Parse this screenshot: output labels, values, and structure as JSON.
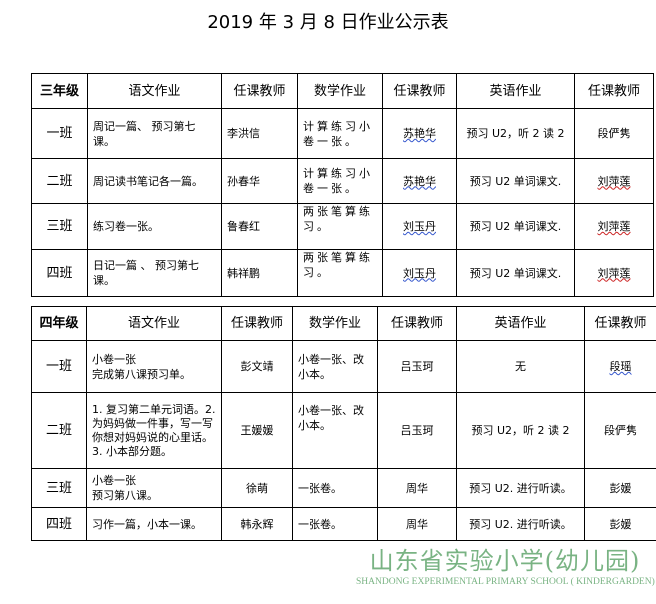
{
  "title": "2019 年  3 月 8 日作业公示表",
  "grade3": {
    "headers": [
      "三年级",
      "语文作业",
      "任课教师",
      "数学作业",
      "任课教师",
      "英语作业",
      "任课教师"
    ],
    "rows": [
      [
        "一班",
        "周记一篇、 预习第七课。",
        "李洪信",
        "计算练习小卷一张。",
        "苏艳华",
        "预习 U2，听 2 读 2",
        "段俨隽"
      ],
      [
        "二班",
        "周记读书笔记各一篇。",
        "孙春华",
        "计算练习小卷一张。",
        "苏艳华",
        "预习  U2 单词课文.",
        "刘萍莲"
      ],
      [
        "三班",
        "练习卷一张。",
        "鲁春红",
        "两张笔算练习。",
        "刘玉丹",
        "预习  U2 单词课文.",
        "刘萍莲"
      ],
      [
        "四班",
        "日记一篇 、 预习第七课。",
        "韩祥鹏",
        "两张笔算练习。",
        "刘玉丹",
        "预习  U2 单词课文.",
        "刘萍莲"
      ]
    ]
  },
  "grade4": {
    "headers": [
      "四年级",
      "语文作业",
      "任课教师",
      "数学作业",
      "任课教师",
      "英语作业",
      "任课教师"
    ],
    "rows": [
      [
        "一班",
        "小卷一张\n完成第八课预习单。",
        "彭文靖",
        "小卷一张、改小本。",
        "吕玉珂",
        "无",
        "段瑶"
      ],
      [
        "二班",
        "1. 复习第二单元词语。2. 为妈妈做一件事，写一写你想对妈妈说的心里话。3. 小本部分题。",
        "王媛媛",
        "小卷一张、改小本。",
        "吕玉珂",
        "预习 U2，听 2 读 2",
        "段俨隽"
      ],
      [
        "三班",
        "小卷一张\n预习第八课。",
        "徐萌",
        "一张卷。",
        "周华",
        "预习 U2. 进行听读。",
        "彭媛"
      ],
      [
        "四班",
        "习作一篇，小本一课。",
        "韩永辉",
        "一张卷。",
        "周华",
        "预习 U2. 进行听读。",
        "彭媛"
      ]
    ]
  },
  "watermark": {
    "cn": "山东省实验小学(幼儿园)",
    "en": "SHANDONG EXPERIMENTAL PRIMARY SCHOOL ( KINDERGARDEN)"
  },
  "colors": {
    "watermark": "#4d9a5a"
  }
}
